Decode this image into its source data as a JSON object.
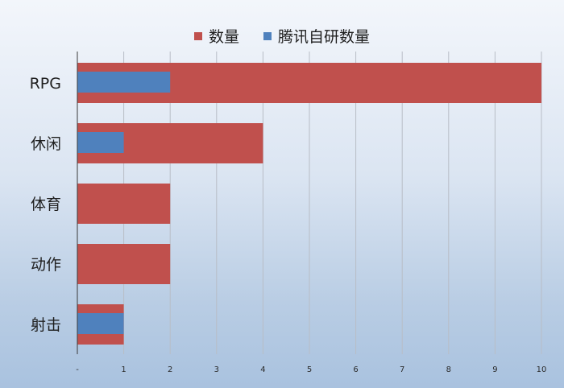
{
  "chart_data": {
    "type": "bar",
    "orientation": "horizontal",
    "categories": [
      "RPG",
      "休闲",
      "体育",
      "动作",
      "射击"
    ],
    "series": [
      {
        "name": "数量",
        "values": [
          10,
          4,
          2,
          2,
          1
        ],
        "color": "#c0504d"
      },
      {
        "name": "腾讯自研数量",
        "values": [
          2,
          1,
          0,
          0,
          1
        ],
        "color": "#4f81bd"
      }
    ],
    "xlim": [
      0,
      10
    ],
    "x_ticks": [
      {
        "value": 0,
        "label": "-"
      },
      {
        "value": 1,
        "label": "1"
      },
      {
        "value": 2,
        "label": "2"
      },
      {
        "value": 3,
        "label": "3"
      },
      {
        "value": 4,
        "label": "4"
      },
      {
        "value": 5,
        "label": "5"
      },
      {
        "value": 6,
        "label": "6"
      },
      {
        "value": 7,
        "label": "7"
      },
      {
        "value": 8,
        "label": "8"
      },
      {
        "value": 9,
        "label": "9"
      },
      {
        "value": 10,
        "label": "10"
      }
    ],
    "grid": "vertical",
    "legend_position": "top-center",
    "title": "",
    "xlabel": "",
    "ylabel": ""
  }
}
